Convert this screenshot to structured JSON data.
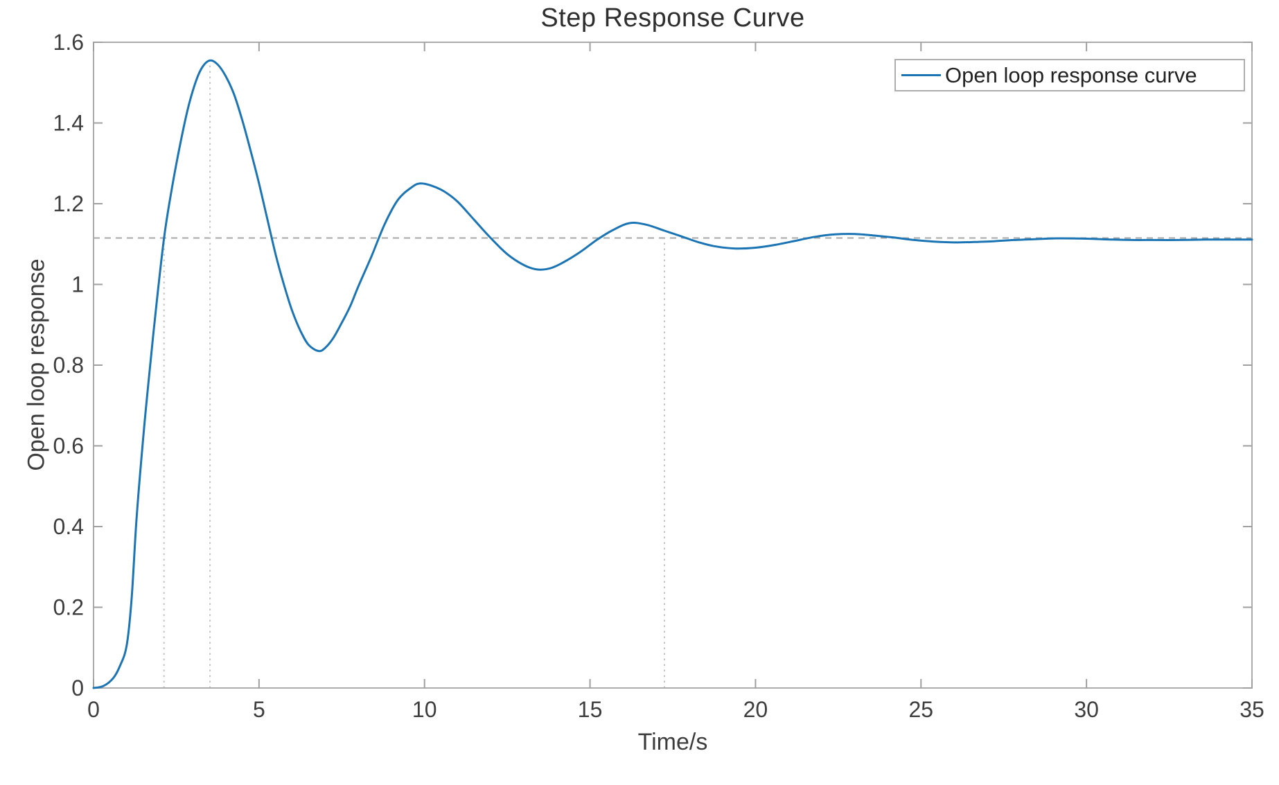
{
  "figure": {
    "title": "Step Response Curve",
    "xlabel": "Time/s",
    "ylabel": "Open loop response"
  },
  "legend": {
    "items": [
      {
        "label": "Open loop response curve",
        "color": "#1b74b4"
      }
    ]
  },
  "chart_data": {
    "type": "line",
    "title": "Step Response Curve",
    "xlabel": "Time/s",
    "ylabel": "Open loop response",
    "xlim": [
      0,
      35
    ],
    "ylim": [
      0,
      1.6
    ],
    "xticks": {
      "values": [
        0,
        5,
        10,
        15,
        20,
        25,
        30,
        35
      ],
      "labels": [
        "0",
        "5",
        "10",
        "15",
        "20",
        "25",
        "30",
        "35"
      ]
    },
    "yticks": {
      "values": [
        0,
        0.2,
        0.4,
        0.6,
        0.8,
        1.0,
        1.2,
        1.4,
        1.6
      ],
      "labels": [
        "0",
        "0.2",
        "0.4",
        "0.6",
        "0.8",
        "1",
        "1.2",
        "1.4",
        "1.6"
      ]
    },
    "grid": false,
    "legend_position": "top-right",
    "series": [
      {
        "name": "Open loop response curve",
        "color": "#1b74b4",
        "width": 3,
        "points": [
          [
            0,
            0
          ],
          [
            0.3,
            0.005
          ],
          [
            0.6,
            0.025
          ],
          [
            0.8,
            0.055
          ],
          [
            1.0,
            0.105
          ],
          [
            1.15,
            0.22
          ],
          [
            1.3,
            0.42
          ],
          [
            1.5,
            0.62
          ],
          [
            1.7,
            0.79
          ],
          [
            1.9,
            0.95
          ],
          [
            2.13,
            1.115
          ],
          [
            2.35,
            1.23
          ],
          [
            2.6,
            1.34
          ],
          [
            2.85,
            1.435
          ],
          [
            3.1,
            1.505
          ],
          [
            3.3,
            1.54
          ],
          [
            3.52,
            1.555
          ],
          [
            3.75,
            1.545
          ],
          [
            4.0,
            1.515
          ],
          [
            4.25,
            1.47
          ],
          [
            4.5,
            1.405
          ],
          [
            4.75,
            1.33
          ],
          [
            5.0,
            1.25
          ],
          [
            5.2,
            1.18
          ],
          [
            5.5,
            1.075
          ],
          [
            5.75,
            1.0
          ],
          [
            6.0,
            0.935
          ],
          [
            6.25,
            0.885
          ],
          [
            6.5,
            0.85
          ],
          [
            6.8,
            0.835
          ],
          [
            7.0,
            0.843
          ],
          [
            7.25,
            0.868
          ],
          [
            7.5,
            0.905
          ],
          [
            7.75,
            0.945
          ],
          [
            8.0,
            0.995
          ],
          [
            8.4,
            1.07
          ],
          [
            8.8,
            1.15
          ],
          [
            9.2,
            1.21
          ],
          [
            9.6,
            1.24
          ],
          [
            9.85,
            1.25
          ],
          [
            10.2,
            1.245
          ],
          [
            10.6,
            1.23
          ],
          [
            11.0,
            1.205
          ],
          [
            11.5,
            1.16
          ],
          [
            12.0,
            1.115
          ],
          [
            12.5,
            1.075
          ],
          [
            13.0,
            1.048
          ],
          [
            13.4,
            1.037
          ],
          [
            13.8,
            1.04
          ],
          [
            14.2,
            1.055
          ],
          [
            14.7,
            1.08
          ],
          [
            15.2,
            1.11
          ],
          [
            15.7,
            1.135
          ],
          [
            16.2,
            1.152
          ],
          [
            16.7,
            1.148
          ],
          [
            17.25,
            1.133
          ],
          [
            17.8,
            1.118
          ],
          [
            18.3,
            1.104
          ],
          [
            18.8,
            1.094
          ],
          [
            19.4,
            1.089
          ],
          [
            20.0,
            1.091
          ],
          [
            20.6,
            1.098
          ],
          [
            21.2,
            1.108
          ],
          [
            21.8,
            1.118
          ],
          [
            22.4,
            1.124
          ],
          [
            23.0,
            1.125
          ],
          [
            23.6,
            1.121
          ],
          [
            24.2,
            1.116
          ],
          [
            24.8,
            1.11
          ],
          [
            25.4,
            1.106
          ],
          [
            26.0,
            1.104
          ],
          [
            26.6,
            1.105
          ],
          [
            27.2,
            1.107
          ],
          [
            27.8,
            1.11
          ],
          [
            28.4,
            1.112
          ],
          [
            29.0,
            1.114
          ],
          [
            29.6,
            1.114
          ],
          [
            30.2,
            1.113
          ],
          [
            30.8,
            1.111
          ],
          [
            31.4,
            1.11
          ],
          [
            32.0,
            1.11
          ],
          [
            32.8,
            1.11
          ],
          [
            33.6,
            1.111
          ],
          [
            34.4,
            1.111
          ],
          [
            35.0,
            1.111
          ]
        ]
      }
    ],
    "annotations": {
      "steady_state_line": {
        "y": 1.115,
        "style": "dashed",
        "color": "#a6a6a6"
      },
      "vertical_markers": [
        {
          "x": 2.13,
          "y_top": 1.115,
          "name": "rise-time-marker"
        },
        {
          "x": 3.52,
          "y_top": 1.555,
          "name": "peak-time-marker"
        },
        {
          "x": 17.25,
          "y_top": 1.115,
          "name": "settling-time-marker"
        }
      ],
      "features": {
        "peak_value": 1.555,
        "peak_time": 3.52,
        "steady_state_value": 1.115
      }
    }
  }
}
